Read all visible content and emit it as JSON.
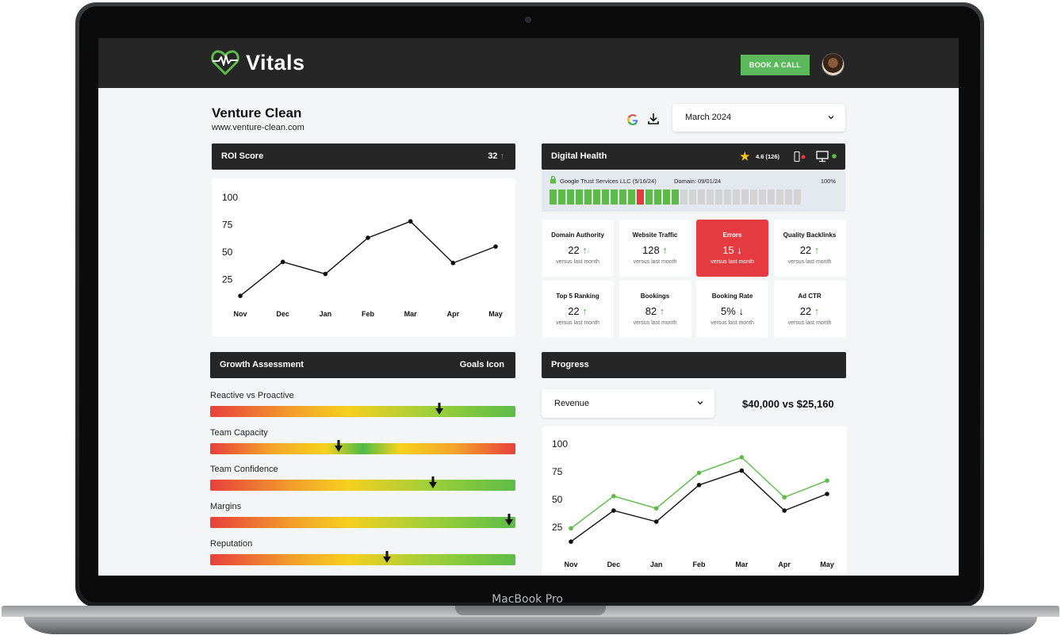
{
  "device": {
    "brand_label": "MacBook Pro"
  },
  "header": {
    "logo_text": "Vitals",
    "book_call_label": "BOOK A CALL"
  },
  "company": {
    "name": "Venture Clean",
    "url": "www.venture-clean.com"
  },
  "month_select": {
    "value": "March 2024"
  },
  "roi": {
    "title": "ROI Score",
    "score": "32",
    "chart_data": {
      "type": "line",
      "categories": [
        "Nov",
        "Dec",
        "Jan",
        "Feb",
        "Mar",
        "Apr",
        "May"
      ],
      "values": [
        10,
        41,
        30,
        63,
        78,
        40,
        55
      ],
      "yticks": [
        "25",
        "50",
        "75",
        "100"
      ],
      "ylim": [
        0,
        110
      ]
    }
  },
  "digital_health": {
    "title": "Digital Health",
    "rating": "4.6 (126)",
    "ssl_issuer": "Google Trust Services LLC (5/16/24)",
    "domain": "Domain: 09/01/24",
    "percent": "100%",
    "ssl_segments": {
      "green_before_red": 10,
      "red": 1,
      "green_after_red": 4,
      "grey": 14
    },
    "colors": {
      "green": "#5cbc47",
      "red": "#e53a3f",
      "grey": "#d3d3d3"
    }
  },
  "metrics": [
    {
      "title": "Domain Authority",
      "value": "22",
      "trend": "up",
      "sub": "versus last month"
    },
    {
      "title": "Website Traffic",
      "value": "128",
      "trend": "up",
      "sub": "versus last month"
    },
    {
      "title": "Errors",
      "value": "15",
      "trend": "down",
      "sub": "versus last month",
      "highlight": true
    },
    {
      "title": "Quality Backlinks",
      "value": "22",
      "trend": "up",
      "sub": "versus last month"
    },
    {
      "title": "Top 5 Ranking",
      "value": "22",
      "trend": "up",
      "sub": "versus last month"
    },
    {
      "title": "Bookings",
      "value": "82",
      "trend": "up",
      "sub": "versus last month"
    },
    {
      "title": "Booking Rate",
      "value": "5%",
      "trend": "down",
      "sub": "versus last month"
    },
    {
      "title": "Ad CTR",
      "value": "22",
      "trend": "up",
      "sub": "versus last month"
    }
  ],
  "growth": {
    "title": "Growth Assessment",
    "goals_label": "Goals Icon",
    "items": [
      {
        "label": "Reactive vs Proactive",
        "level": 0.75
      },
      {
        "label": "Team Capacity",
        "level": 0.42
      },
      {
        "label": "Team Confidence",
        "level": 0.73
      },
      {
        "label": "Margins",
        "level": 0.98
      },
      {
        "label": "Reputation",
        "level": 0.58
      }
    ]
  },
  "progress": {
    "title": "Progress",
    "metric_select": "Revenue",
    "comparison": "$40,000 vs $25,160",
    "chart_data": {
      "type": "line",
      "categories": [
        "Nov",
        "Dec",
        "Jan",
        "Feb",
        "Mar",
        "Apr",
        "May"
      ],
      "series": [
        {
          "color": "#5cbc47",
          "values": [
            24,
            53,
            42,
            74,
            88,
            52,
            67
          ]
        },
        {
          "color": "#111111",
          "values": [
            12,
            40,
            30,
            63,
            76,
            40,
            55
          ]
        }
      ],
      "yticks": [
        "25",
        "50",
        "75",
        "100"
      ],
      "ylim": [
        0,
        110
      ]
    }
  }
}
